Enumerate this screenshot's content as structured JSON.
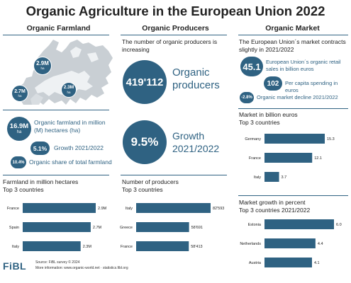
{
  "title": "Organic Agriculture in the European Union 2022",
  "columns": {
    "farmland": "Organic Farmland",
    "producers": "Organic Producers",
    "market": "Organic Market"
  },
  "farmland": {
    "map_bubbles": [
      {
        "value": "2.9M",
        "unit": "ha"
      },
      {
        "value": "2.7M",
        "unit": "ha"
      },
      {
        "value": "2.3M",
        "unit": "ha"
      }
    ],
    "stats": [
      {
        "value": "16.9M",
        "unit": "ha",
        "label": "Organic farmland in million (M) hectares (ha)"
      },
      {
        "value": "5.1%",
        "unit": "",
        "label": "Growth 2021/2022"
      },
      {
        "value": "10.4%",
        "unit": "",
        "label": "Organic share of total farmland"
      }
    ]
  },
  "producers": {
    "intro": "The number of organic producers is increasing",
    "big_value": "419'112",
    "big_label": "Organic producers",
    "growth_value": "9.5%",
    "growth_label": "Growth 2021/2022"
  },
  "market": {
    "intro": "The European Union´s market contracts slightly in 2021/2022",
    "stats": [
      {
        "value": "45.1",
        "label": "European Union´s organic retail sales in billion euros"
      },
      {
        "value": "102",
        "label": "Per capita spending in euros"
      },
      {
        "value": "-2.8%",
        "label": "Organic market decline 2021/2022"
      }
    ]
  },
  "colors": {
    "accent": "#2f6282",
    "text": "#222222"
  },
  "chart_data": [
    {
      "type": "bar",
      "title": "Farmland in million hectares",
      "subtitle": "Top 3 countries",
      "categories": [
        "France",
        "Spain",
        "Italy"
      ],
      "values": [
        2.9,
        2.7,
        2.3
      ],
      "labels": [
        "2.9M",
        "2.7M",
        "2.3M"
      ],
      "orientation": "horizontal",
      "xlim": [
        0,
        2.9
      ]
    },
    {
      "type": "bar",
      "title": "Number of producers",
      "subtitle": "Top 3 countries",
      "categories": [
        "Italy",
        "Greece",
        "France"
      ],
      "values": [
        82593,
        58691,
        58413
      ],
      "labels": [
        "82'593",
        "58'691",
        "58'413"
      ],
      "orientation": "horizontal",
      "xlim": [
        0,
        82593
      ]
    },
    {
      "type": "bar",
      "title": "Market in billion euros",
      "subtitle": "Top 3 countries",
      "categories": [
        "Germany",
        "France",
        "Italy"
      ],
      "values": [
        15.3,
        12.1,
        3.7
      ],
      "labels": [
        "15.3",
        "12.1",
        "3.7"
      ],
      "orientation": "horizontal",
      "xlim": [
        0,
        15.3
      ]
    },
    {
      "type": "bar",
      "title": "Market growth in percent",
      "subtitle": "Top 3 countries 2021/2022",
      "categories": [
        "Estonia",
        "Netherlands",
        "Austria"
      ],
      "values": [
        6.0,
        4.4,
        4.1
      ],
      "labels": [
        "6.0",
        "4.4",
        "4.1"
      ],
      "orientation": "horizontal",
      "xlim": [
        0,
        6.0
      ]
    }
  ],
  "footer": {
    "logo": "FiBL",
    "source": "Source: FiBL survey © 2024",
    "more": "More information: www.organic-world.net · statistics.fibl.org"
  }
}
